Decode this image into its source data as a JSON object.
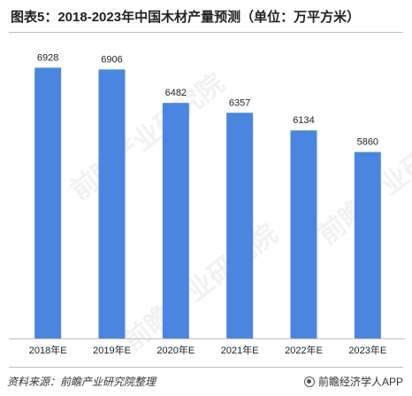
{
  "title": "图表5：2018-2023年中国木材产量预测（单位：万平方米）",
  "source": "资料来源：前瞻产业研究院整理",
  "app_brand": "前瞻经济学人APP",
  "watermark": "前瞻产业研究院",
  "colors": {
    "bar": "#4A86E0",
    "axis": "#bfbfbf",
    "label": "#222222"
  },
  "chart_data": {
    "type": "bar",
    "categories": [
      "2018年E",
      "2019年E",
      "2020年E",
      "2021年E",
      "2022年E",
      "2023年E"
    ],
    "values": [
      6928,
      6906,
      6482,
      6357,
      6134,
      5860
    ],
    "data_labels": [
      "6928",
      "6906",
      "6482",
      "6357",
      "6134",
      "5860"
    ],
    "title": "",
    "xlabel": "",
    "ylabel": "",
    "ylim": [
      3500,
      7000
    ],
    "grid": false,
    "legend": "none"
  }
}
